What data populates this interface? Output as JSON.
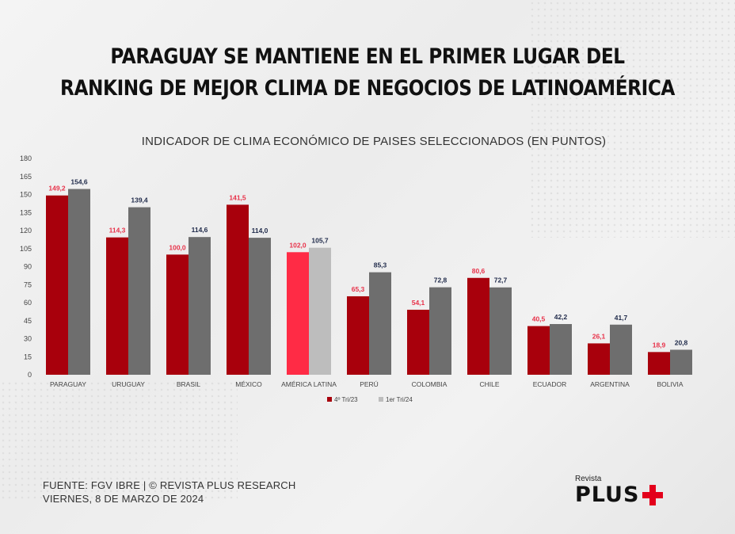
{
  "headline": {
    "line1": "PARAGUAY SE MANTIENE EN EL PRIMER LUGAR DEL",
    "line2": "RANKING DE MEJOR CLIMA DE NEGOCIOS DE LATINOAMÉRICA"
  },
  "chart_data": {
    "type": "bar",
    "title": "INDICADOR DE CLIMA ECONÓMICO DE PAISES SELECCIONADOS (EN PUNTOS)",
    "categories": [
      "PARAGUAY",
      "URUGUAY",
      "BRASIL",
      "MÉXICO",
      "AMÉRICA LATINA",
      "PERÚ",
      "COLOMBIA",
      "CHILE",
      "ECUADOR",
      "ARGENTINA",
      "BOLIVIA"
    ],
    "series": [
      {
        "name": "4º Tri/23",
        "values": [
          149.2,
          114.3,
          100.0,
          141.5,
          102.0,
          65.3,
          54.1,
          80.6,
          40.5,
          26.1,
          18.9
        ],
        "labels": [
          "149,2",
          "114,3",
          "100,0",
          "141,5",
          "102,0",
          "65,3",
          "54,1",
          "80,6",
          "40,5",
          "26,1",
          "18,9"
        ]
      },
      {
        "name": "1er Tri/24",
        "values": [
          154.6,
          139.4,
          114.6,
          114.0,
          105.7,
          85.3,
          72.8,
          72.7,
          42.2,
          41.7,
          20.8
        ],
        "labels": [
          "154,6",
          "139,4",
          "114,6",
          "114,0",
          "105,7",
          "85,3",
          "72,8",
          "72,7",
          "42,2",
          "41,7",
          "20,8"
        ]
      }
    ],
    "highlight_category": "AMÉRICA LATINA",
    "ylim": [
      0,
      180
    ],
    "yticks": [
      0,
      15,
      30,
      45,
      60,
      75,
      90,
      105,
      120,
      135,
      150,
      165,
      180
    ],
    "xlabel": "",
    "ylabel": "",
    "legend": "bottom-center",
    "colors": {
      "series1": "#a8000c",
      "series2": "#6e6e6e",
      "highlight1": "#ff2b45",
      "highlight2": "#bdbdbd",
      "label1": "#e8324a",
      "label2": "#1f2a4a",
      "axis_text": "#444444"
    }
  },
  "footer": {
    "source": "FUENTE: FGV IBRE | © REVISTA PLUS RESEARCH",
    "date": "VIERNES, 8 DE MARZO DE 2024"
  },
  "logo": {
    "small": "Revista",
    "big": "PLUS",
    "icon": "plus-icon"
  }
}
